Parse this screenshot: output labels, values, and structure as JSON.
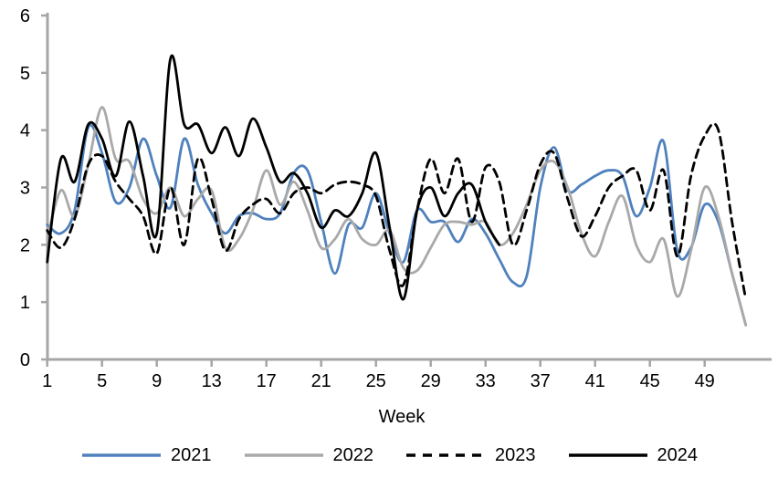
{
  "chart_data": {
    "type": "line",
    "title": "",
    "xlabel": "Week",
    "ylabel": "",
    "xlim": [
      1,
      53
    ],
    "ylim": [
      0,
      6
    ],
    "x_ticks": [
      1,
      5,
      9,
      13,
      17,
      21,
      25,
      29,
      33,
      37,
      41,
      45,
      49
    ],
    "y_ticks": [
      0,
      1,
      2,
      3,
      4,
      5,
      6
    ],
    "grid": false,
    "legend_position": "bottom",
    "axis_color": "#a6a6a6",
    "smooth_lines": true,
    "series": [
      {
        "name": "2021",
        "color": "#4f81bd",
        "style": "solid",
        "start_week": 1,
        "values": [
          2.35,
          2.2,
          2.6,
          4.05,
          3.6,
          2.75,
          3.0,
          3.85,
          3.2,
          2.65,
          3.85,
          3.05,
          2.55,
          2.2,
          2.5,
          2.55,
          2.45,
          2.55,
          3.25,
          3.3,
          2.4,
          1.5,
          2.35,
          2.3,
          2.9,
          2.2,
          1.7,
          2.6,
          2.4,
          2.4,
          2.05,
          2.45,
          2.2,
          1.75,
          1.35,
          1.45,
          3.0,
          3.7,
          2.95,
          3.05,
          3.2,
          3.3,
          3.2,
          2.5,
          3.0,
          3.8,
          1.9,
          1.95,
          2.7,
          2.4,
          1.5,
          0.6
        ]
      },
      {
        "name": "2022",
        "color": "#a9a9a9",
        "style": "solid",
        "start_week": 1,
        "values": [
          2.1,
          2.95,
          2.5,
          3.4,
          4.4,
          3.5,
          3.45,
          2.8,
          2.55,
          3.0,
          2.5,
          2.8,
          2.95,
          1.95,
          2.1,
          2.6,
          3.3,
          2.7,
          3.1,
          2.6,
          1.95,
          2.1,
          2.45,
          2.1,
          2.0,
          2.25,
          1.6,
          1.55,
          1.95,
          2.35,
          2.4,
          2.35,
          2.4,
          2.0,
          2.2,
          2.7,
          3.3,
          3.45,
          3.0,
          2.2,
          1.8,
          2.4,
          2.85,
          2.0,
          1.7,
          2.1,
          1.1,
          1.9,
          3.0,
          2.5,
          1.5,
          0.6
        ]
      },
      {
        "name": "2023",
        "color": "#000000",
        "style": "dashed",
        "start_week": 1,
        "values": [
          2.25,
          1.95,
          2.45,
          3.4,
          3.55,
          3.1,
          2.8,
          2.5,
          1.85,
          3.0,
          2.0,
          3.5,
          2.8,
          1.9,
          2.45,
          2.7,
          2.8,
          2.55,
          2.9,
          3.0,
          2.9,
          3.05,
          3.1,
          3.05,
          2.85,
          1.9,
          1.3,
          2.6,
          3.5,
          2.9,
          3.5,
          2.4,
          3.35,
          3.1,
          2.0,
          2.6,
          3.4,
          3.6,
          2.8,
          2.15,
          2.5,
          3.0,
          3.2,
          3.3,
          2.6,
          3.3,
          1.8,
          3.2,
          3.9,
          4.0,
          2.4,
          1.05
        ]
      },
      {
        "name": "2024",
        "color": "#000000",
        "style": "solid",
        "start_week": 1,
        "values": [
          1.7,
          3.5,
          3.1,
          4.1,
          3.85,
          3.2,
          4.15,
          3.2,
          2.2,
          5.25,
          4.1,
          4.1,
          3.6,
          4.05,
          3.55,
          4.2,
          3.7,
          3.1,
          3.25,
          2.9,
          2.3,
          2.6,
          2.5,
          2.9,
          3.6,
          2.3,
          1.05,
          2.6,
          3.0,
          2.5,
          2.9,
          3.05,
          2.4,
          2.0
        ]
      }
    ]
  }
}
